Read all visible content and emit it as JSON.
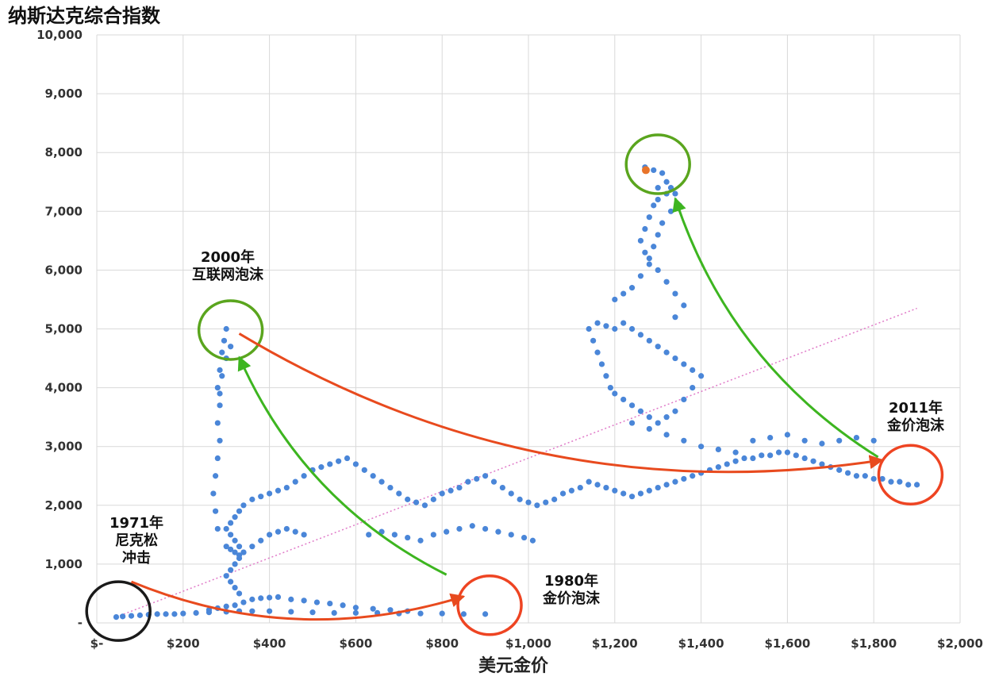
{
  "chart_data": {
    "type": "scatter",
    "title": "纳斯达克综合指数",
    "xlabel": "美元金价",
    "ylabel": "",
    "xlim": [
      0,
      2000
    ],
    "ylim": [
      0,
      10000
    ],
    "grid": true,
    "x_ticks": [
      "$-",
      "$200",
      "$400",
      "$600",
      "$800",
      "$1,000",
      "$1,200",
      "$1,400",
      "$1,600",
      "$1,800",
      "$2,000"
    ],
    "y_ticks": [
      "-",
      "1,000",
      "2,000",
      "3,000",
      "4,000",
      "5,000",
      "6,000",
      "7,000",
      "8,000",
      "9,000",
      "10,000"
    ],
    "series": [
      {
        "color": "#4a86d8",
        "points": [
          [
            45,
            100
          ],
          [
            60,
            110
          ],
          [
            80,
            120
          ],
          [
            100,
            130
          ],
          [
            120,
            140
          ],
          [
            140,
            150
          ],
          [
            160,
            150
          ],
          [
            180,
            150
          ],
          [
            200,
            160
          ],
          [
            230,
            170
          ],
          [
            260,
            180
          ],
          [
            300,
            190
          ],
          [
            330,
            200
          ],
          [
            360,
            200
          ],
          [
            400,
            200
          ],
          [
            450,
            190
          ],
          [
            500,
            180
          ],
          [
            550,
            170
          ],
          [
            600,
            170
          ],
          [
            650,
            170
          ],
          [
            700,
            160
          ],
          [
            750,
            160
          ],
          [
            800,
            160
          ],
          [
            850,
            150
          ],
          [
            900,
            150
          ],
          [
            260,
            220
          ],
          [
            280,
            250
          ],
          [
            300,
            280
          ],
          [
            320,
            300
          ],
          [
            340,
            350
          ],
          [
            360,
            400
          ],
          [
            380,
            420
          ],
          [
            400,
            430
          ],
          [
            420,
            440
          ],
          [
            450,
            400
          ],
          [
            480,
            380
          ],
          [
            510,
            350
          ],
          [
            540,
            330
          ],
          [
            570,
            300
          ],
          [
            600,
            260
          ],
          [
            640,
            240
          ],
          [
            680,
            220
          ],
          [
            720,
            200
          ],
          [
            330,
            500
          ],
          [
            320,
            600
          ],
          [
            310,
            700
          ],
          [
            300,
            800
          ],
          [
            310,
            900
          ],
          [
            320,
            1000
          ],
          [
            330,
            1100
          ],
          [
            340,
            1200
          ],
          [
            330,
            1300
          ],
          [
            320,
            1400
          ],
          [
            310,
            1500
          ],
          [
            300,
            1600
          ],
          [
            310,
            1700
          ],
          [
            320,
            1800
          ],
          [
            330,
            1900
          ],
          [
            340,
            2000
          ],
          [
            360,
            2100
          ],
          [
            380,
            2150
          ],
          [
            400,
            2200
          ],
          [
            420,
            2250
          ],
          [
            440,
            2300
          ],
          [
            460,
            2400
          ],
          [
            480,
            2500
          ],
          [
            500,
            2600
          ],
          [
            520,
            2650
          ],
          [
            540,
            2700
          ],
          [
            560,
            2750
          ],
          [
            580,
            2800
          ],
          [
            600,
            2700
          ],
          [
            620,
            2600
          ],
          [
            640,
            2500
          ],
          [
            660,
            2400
          ],
          [
            680,
            2300
          ],
          [
            700,
            2200
          ],
          [
            720,
            2100
          ],
          [
            740,
            2050
          ],
          [
            760,
            2000
          ],
          [
            780,
            2100
          ],
          [
            800,
            2200
          ],
          [
            820,
            2250
          ],
          [
            840,
            2300
          ],
          [
            860,
            2400
          ],
          [
            880,
            2450
          ],
          [
            900,
            2500
          ],
          [
            920,
            2400
          ],
          [
            940,
            2300
          ],
          [
            960,
            2200
          ],
          [
            980,
            2100
          ],
          [
            1000,
            2050
          ],
          [
            1020,
            2000
          ],
          [
            1040,
            2050
          ],
          [
            1060,
            2100
          ],
          [
            1080,
            2200
          ],
          [
            1100,
            2250
          ],
          [
            1120,
            2300
          ],
          [
            1140,
            2400
          ],
          [
            1160,
            2350
          ],
          [
            1180,
            2300
          ],
          [
            1200,
            2250
          ],
          [
            1220,
            2200
          ],
          [
            1240,
            2150
          ],
          [
            1260,
            2200
          ],
          [
            1280,
            2250
          ],
          [
            1300,
            2300
          ],
          [
            1320,
            2350
          ],
          [
            1340,
            2400
          ],
          [
            1360,
            2450
          ],
          [
            1380,
            2500
          ],
          [
            1400,
            2550
          ],
          [
            1420,
            2600
          ],
          [
            1440,
            2650
          ],
          [
            1460,
            2700
          ],
          [
            1480,
            2750
          ],
          [
            1500,
            2800
          ],
          [
            1520,
            2800
          ],
          [
            1540,
            2850
          ],
          [
            1560,
            2850
          ],
          [
            1580,
            2900
          ],
          [
            1600,
            2900
          ],
          [
            1620,
            2850
          ],
          [
            1640,
            2800
          ],
          [
            1660,
            2750
          ],
          [
            1680,
            2700
          ],
          [
            1700,
            2650
          ],
          [
            1720,
            2600
          ],
          [
            1740,
            2550
          ],
          [
            1760,
            2500
          ],
          [
            1780,
            2500
          ],
          [
            1800,
            2450
          ],
          [
            1820,
            2450
          ],
          [
            1840,
            2400
          ],
          [
            1860,
            2400
          ],
          [
            1880,
            2350
          ],
          [
            1900,
            2350
          ],
          [
            280,
            1600
          ],
          [
            275,
            1900
          ],
          [
            270,
            2200
          ],
          [
            275,
            2500
          ],
          [
            280,
            2800
          ],
          [
            285,
            3100
          ],
          [
            280,
            3400
          ],
          [
            285,
            3700
          ],
          [
            280,
            4000
          ],
          [
            285,
            4300
          ],
          [
            290,
            4600
          ],
          [
            295,
            4800
          ],
          [
            300,
            5000
          ],
          [
            310,
            4700
          ],
          [
            300,
            4500
          ],
          [
            290,
            4200
          ],
          [
            285,
            3900
          ],
          [
            300,
            1300
          ],
          [
            310,
            1250
          ],
          [
            320,
            1200
          ],
          [
            330,
            1150
          ],
          [
            340,
            1200
          ],
          [
            360,
            1300
          ],
          [
            380,
            1400
          ],
          [
            400,
            1500
          ],
          [
            420,
            1550
          ],
          [
            440,
            1600
          ],
          [
            460,
            1550
          ],
          [
            480,
            1500
          ],
          [
            630,
            1500
          ],
          [
            660,
            1550
          ],
          [
            690,
            1500
          ],
          [
            720,
            1450
          ],
          [
            750,
            1400
          ],
          [
            780,
            1500
          ],
          [
            810,
            1550
          ],
          [
            840,
            1600
          ],
          [
            870,
            1650
          ],
          [
            900,
            1600
          ],
          [
            930,
            1550
          ],
          [
            960,
            1500
          ],
          [
            990,
            1450
          ],
          [
            1010,
            1400
          ],
          [
            1520,
            3100
          ],
          [
            1560,
            3150
          ],
          [
            1600,
            3200
          ],
          [
            1640,
            3100
          ],
          [
            1680,
            3050
          ],
          [
            1720,
            3100
          ],
          [
            1760,
            3150
          ],
          [
            1800,
            3100
          ],
          [
            1240,
            3400
          ],
          [
            1280,
            3300
          ],
          [
            1320,
            3200
          ],
          [
            1360,
            3100
          ],
          [
            1400,
            3000
          ],
          [
            1440,
            2950
          ],
          [
            1480,
            2900
          ],
          [
            1220,
            5100
          ],
          [
            1240,
            5000
          ],
          [
            1260,
            4900
          ],
          [
            1280,
            4800
          ],
          [
            1300,
            4700
          ],
          [
            1320,
            4600
          ],
          [
            1340,
            4500
          ],
          [
            1360,
            4400
          ],
          [
            1380,
            4300
          ],
          [
            1400,
            4200
          ],
          [
            1380,
            4000
          ],
          [
            1360,
            3800
          ],
          [
            1340,
            3600
          ],
          [
            1320,
            3500
          ],
          [
            1300,
            3400
          ],
          [
            1280,
            3500
          ],
          [
            1260,
            3600
          ],
          [
            1240,
            3700
          ],
          [
            1220,
            3800
          ],
          [
            1200,
            3900
          ],
          [
            1190,
            4000
          ],
          [
            1180,
            4200
          ],
          [
            1170,
            4400
          ],
          [
            1160,
            4600
          ],
          [
            1150,
            4800
          ],
          [
            1140,
            5000
          ],
          [
            1160,
            5100
          ],
          [
            1180,
            5050
          ],
          [
            1200,
            5000
          ],
          [
            1200,
            5500
          ],
          [
            1220,
            5600
          ],
          [
            1240,
            5700
          ],
          [
            1260,
            5900
          ],
          [
            1280,
            6100
          ],
          [
            1270,
            6300
          ],
          [
            1260,
            6500
          ],
          [
            1270,
            6700
          ],
          [
            1280,
            6900
          ],
          [
            1290,
            7100
          ],
          [
            1300,
            7200
          ],
          [
            1320,
            7300
          ],
          [
            1330,
            7400
          ],
          [
            1340,
            7300
          ],
          [
            1350,
            7100
          ],
          [
            1330,
            7000
          ],
          [
            1310,
            6800
          ],
          [
            1300,
            6600
          ],
          [
            1290,
            6400
          ],
          [
            1280,
            6200
          ],
          [
            1300,
            6000
          ],
          [
            1320,
            5800
          ],
          [
            1340,
            5600
          ],
          [
            1360,
            5400
          ],
          [
            1340,
            5200
          ],
          [
            1270,
            7750
          ],
          [
            1290,
            7700
          ],
          [
            1310,
            7650
          ],
          [
            1320,
            7500
          ],
          [
            1300,
            7400
          ]
        ]
      }
    ],
    "highlight_point": {
      "x": 1272,
      "y": 7700,
      "color": "#e8742a"
    },
    "trendline": {
      "from": [
        45,
        100
      ],
      "to": [
        1900,
        5350
      ],
      "color": "#e07ac8",
      "style": "dotted"
    },
    "annotations": [
      {
        "label_lines": [
          "1971年",
          "尼克松",
          "冲击"
        ],
        "circle_color": "#1a1a1a",
        "x": 50,
        "y": 200
      },
      {
        "label_lines": [
          "1980年",
          "金价泡沫"
        ],
        "circle_color": "#ee4422",
        "x": 910,
        "y": 300
      },
      {
        "label_lines": [
          "2000年",
          "互联网泡沫"
        ],
        "circle_color": "#5aa51e",
        "x": 310,
        "y": 4980
      },
      {
        "label_lines": [
          "2011年",
          "金价泡沫"
        ],
        "circle_color": "#ee4422",
        "x": 1885,
        "y": 2520
      },
      {
        "label_lines": [],
        "circle_color": "#5aa51e",
        "x": 1300,
        "y": 7800
      }
    ],
    "arrows": [
      {
        "color": "#e84a1e",
        "from": [
          80,
          700
        ],
        "to": [
          850,
          450
        ]
      },
      {
        "color": "#e84a1e",
        "from": [
          330,
          4920
        ],
        "to": [
          1820,
          2770
        ]
      },
      {
        "color": "#3db520",
        "from": [
          810,
          820
        ],
        "to": [
          330,
          4520
        ]
      },
      {
        "color": "#3db520",
        "from": [
          1810,
          2820
        ],
        "to": [
          1340,
          7220
        ]
      }
    ]
  }
}
